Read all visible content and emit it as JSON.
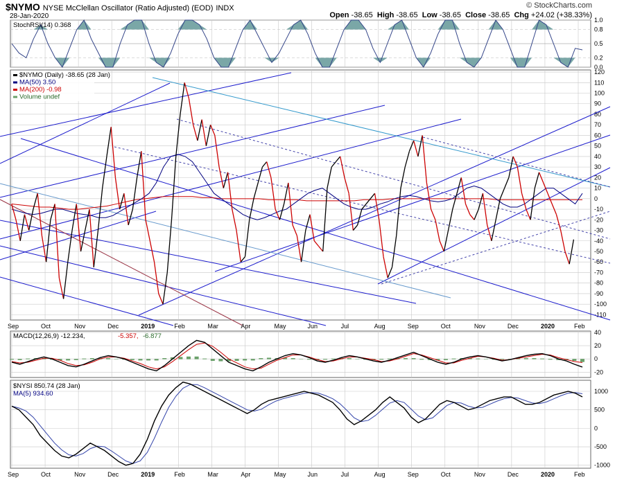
{
  "header": {
    "symbol": "$NYMO",
    "name": "NYSE McClellan Oscillator (Ratio Adjusted) (EOD)",
    "exchange": "INDX",
    "date": "28-Jan-2020",
    "credit": "© StockCharts.com",
    "open_label": "Open",
    "open": "-38.65",
    "high_label": "High",
    "high": "-38.65",
    "low_label": "Low",
    "low": "-38.65",
    "close_label": "Close",
    "close": "-38.65",
    "chg_label": "Chg",
    "chg": "+24.02 (+38.33%)"
  },
  "months": [
    "Sep",
    "Oct",
    "Nov",
    "Dec",
    "2019",
    "Feb",
    "Mar",
    "Apr",
    "May",
    "Jun",
    "Jul",
    "Aug",
    "Sep",
    "Oct",
    "Nov",
    "Dec",
    "2020",
    "Feb"
  ],
  "colors": {
    "price": "#cc0000",
    "priceUp": "#000000",
    "ma50": "#000080",
    "ma200": "#cc0000",
    "channel": "#1a1acc",
    "cyan": "#3399cc",
    "dashed": "#4444aa",
    "lightblue": "#6699cc",
    "maroon": "#993344",
    "rsiFill": "#7aa7a7",
    "macdHist": "#6aa06a",
    "grid": "#c8c8c8"
  },
  "chart_data": [
    {
      "type": "line",
      "panel": "StochRSI",
      "legend": "StochRSI(14) 0.368",
      "ylim": [
        0,
        1
      ],
      "yticks": [
        0.0,
        0.2,
        0.5,
        0.8,
        1.0
      ],
      "values": [
        0.5,
        0.3,
        0.2,
        0.6,
        0.9,
        0.5,
        0.2,
        0.0,
        0.4,
        0.8,
        1.0,
        0.6,
        0.3,
        0.0,
        0.0,
        0.5,
        0.9,
        1.0,
        1.0,
        0.5,
        0.1,
        0.0,
        0.3,
        0.7,
        1.0,
        1.0,
        0.9,
        0.6,
        0.2,
        0.0,
        0.0,
        0.4,
        0.8,
        1.0,
        0.7,
        0.4,
        0.1,
        0.3,
        0.6,
        0.9,
        1.0,
        0.7,
        0.3,
        0.0,
        0.0,
        0.4,
        0.8,
        1.0,
        1.0,
        0.8,
        0.4,
        0.1,
        0.5,
        0.9,
        1.0,
        0.6,
        0.2,
        0.0,
        0.3,
        0.7,
        1.0,
        1.0,
        0.5,
        0.1,
        0.0,
        0.2,
        0.6,
        1.0,
        0.8,
        0.4,
        0.0,
        0.0,
        0.5,
        1.0,
        0.9,
        0.5,
        0.1,
        0.0,
        0.4,
        0.368
      ]
    },
    {
      "type": "line",
      "panel": "NYMO",
      "legend": [
        "$NYMO (Daily) -38.65 (28 Jan)",
        "MA(50) 3.50",
        "MA(200) -0.98",
        "Volume undef"
      ],
      "ylim": [
        -115,
        122
      ],
      "yticks": [
        120,
        110,
        100,
        90,
        80,
        70,
        60,
        50,
        40,
        30,
        20,
        10,
        0,
        -10,
        -20,
        -30,
        -40,
        -50,
        -60,
        -70,
        -80,
        -90,
        -100,
        -110
      ],
      "values": [
        -5,
        -20,
        -40,
        -15,
        -30,
        -10,
        5,
        -35,
        -60,
        -20,
        -5,
        -75,
        -95,
        -60,
        -30,
        -5,
        -50,
        -30,
        -10,
        -65,
        -30,
        10,
        40,
        68,
        20,
        -10,
        5,
        -25,
        -10,
        20,
        45,
        -20,
        -40,
        -60,
        -90,
        -100,
        -70,
        -20,
        40,
        80,
        110,
        95,
        70,
        55,
        75,
        50,
        70,
        60,
        30,
        10,
        25,
        -10,
        -30,
        -60,
        -55,
        -20,
        0,
        15,
        30,
        35,
        20,
        -10,
        -20,
        -5,
        15,
        -25,
        -35,
        -60,
        -30,
        -15,
        -40,
        -45,
        -50,
        10,
        30,
        35,
        40,
        20,
        5,
        -30,
        -25,
        -10,
        -5,
        0,
        5,
        -20,
        -55,
        -75,
        -65,
        -35,
        10,
        30,
        45,
        55,
        40,
        60,
        15,
        -10,
        -20,
        -40,
        -50,
        -30,
        -10,
        5,
        20,
        -5,
        -15,
        -20,
        -10,
        5,
        -25,
        -40,
        -20,
        0,
        10,
        20,
        40,
        30,
        5,
        -10,
        -20,
        10,
        25,
        15,
        5,
        -5,
        -15,
        -30,
        -50,
        -62,
        -38.65
      ],
      "ma50": [
        -10,
        -12,
        -14,
        -15,
        -14,
        -12,
        -10,
        -10,
        -12,
        -14,
        -15,
        -16,
        -18,
        -18,
        -16,
        -12,
        -8,
        -4,
        0,
        5,
        15,
        30,
        40,
        42,
        40,
        35,
        25,
        15,
        5,
        0,
        -5,
        -10,
        -15,
        -18,
        -20,
        -18,
        -15,
        -12,
        -10,
        -5,
        0,
        5,
        8,
        10,
        5,
        0,
        -5,
        -8,
        -10,
        -10,
        -8,
        -5,
        -3,
        0,
        2,
        3,
        2,
        0,
        -2,
        -3,
        -2,
        0,
        5,
        10,
        12,
        10,
        5,
        0,
        -5,
        -8,
        -8,
        -5,
        0,
        5,
        10,
        10,
        5,
        0,
        -5,
        5
      ],
      "ma200": [
        -5,
        -6,
        -7,
        -8,
        -8,
        -9,
        -10,
        -10,
        -9,
        -8,
        -7,
        -5,
        -3,
        -1,
        0,
        1,
        2,
        2,
        2,
        2,
        1,
        1,
        0,
        0,
        0,
        0,
        0,
        -1,
        -1,
        -1,
        -1,
        -2,
        -2,
        -2,
        -2,
        -2,
        -2,
        -1,
        -1,
        -1,
        0,
        0,
        0,
        0,
        0,
        0,
        0,
        0,
        0,
        0,
        0,
        -1,
        -1,
        -1,
        -1,
        -1,
        -1,
        -1,
        -1,
        -1,
        -1
      ],
      "xlabels": [
        "Sep",
        "Oct",
        "Nov",
        "Dec",
        "2019",
        "Feb",
        "Mar",
        "Apr",
        "May",
        "Jun",
        "Jul",
        "Aug",
        "Sep",
        "Oct",
        "Nov",
        "Dec",
        "2020",
        "Feb"
      ]
    },
    {
      "type": "line",
      "panel": "MACD",
      "legend": [
        "MACD(12,26,9) -12.234,",
        "-5.357,",
        "-6.877"
      ],
      "ylim": [
        -28,
        42
      ],
      "yticks": [
        40,
        20,
        0,
        -20
      ],
      "macd": [
        -5,
        -8,
        -4,
        0,
        3,
        0,
        -5,
        -10,
        -12,
        -8,
        -3,
        2,
        5,
        3,
        0,
        -5,
        -10,
        -15,
        -18,
        -10,
        0,
        10,
        20,
        28,
        25,
        15,
        5,
        -5,
        -10,
        -15,
        -18,
        -12,
        -5,
        0,
        5,
        8,
        6,
        2,
        -3,
        -5,
        -2,
        2,
        5,
        3,
        0,
        -3,
        -5,
        -2,
        2,
        6,
        10,
        5,
        0,
        -5,
        -8,
        -5,
        0,
        3,
        5,
        3,
        0,
        -3,
        -1,
        2,
        5,
        7,
        8,
        5,
        0,
        -3,
        -8,
        -12.234
      ],
      "signal": [
        -4,
        -6,
        -5,
        -2,
        1,
        1,
        -2,
        -7,
        -10,
        -9,
        -5,
        0,
        3,
        3,
        1,
        -3,
        -7,
        -12,
        -15,
        -12,
        -4,
        5,
        14,
        22,
        24,
        19,
        10,
        0,
        -6,
        -12,
        -15,
        -14,
        -8,
        -2,
        2,
        6,
        6,
        3,
        -1,
        -4,
        -3,
        0,
        3,
        3,
        1,
        -1,
        -4,
        -3,
        0,
        4,
        8,
        6,
        2,
        -2,
        -6,
        -6,
        -2,
        1,
        4,
        3,
        1,
        -2,
        -1,
        1,
        3,
        5,
        7,
        6,
        2,
        -1,
        -4,
        -5.357
      ]
    },
    {
      "type": "line",
      "panel": "NYSI",
      "legend": [
        "$NYSI 850.74 (28 Jan)",
        "MA(5) 934.60"
      ],
      "ylim": [
        -1080,
        1300
      ],
      "yticks": [
        1000,
        500,
        0,
        -500,
        -1000
      ],
      "values": [
        600,
        500,
        300,
        100,
        -200,
        -400,
        -600,
        -750,
        -800,
        -700,
        -550,
        -400,
        -500,
        -600,
        -750,
        -900,
        -1000,
        -950,
        -700,
        -300,
        200,
        600,
        900,
        1100,
        1250,
        1200,
        1100,
        1000,
        900,
        800,
        700,
        600,
        500,
        400,
        500,
        650,
        750,
        800,
        850,
        900,
        950,
        1000,
        950,
        900,
        800,
        700,
        500,
        250,
        100,
        200,
        350,
        500,
        700,
        850,
        700,
        550,
        300,
        150,
        250,
        450,
        650,
        750,
        700,
        600,
        500,
        550,
        650,
        750,
        800,
        850,
        850,
        750,
        650,
        650,
        700,
        800,
        900,
        950,
        1000,
        950,
        850.74
      ]
    }
  ]
}
